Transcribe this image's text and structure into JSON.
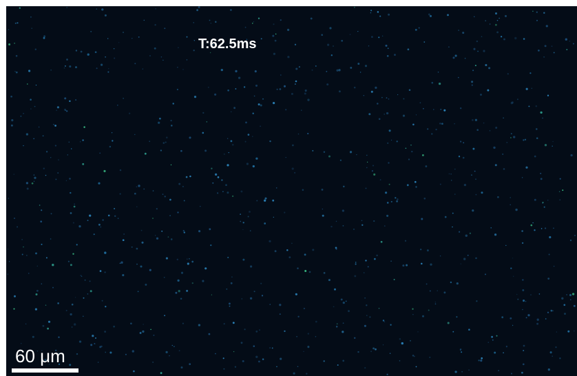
{
  "overlay": {
    "timestamp": "T:62.5ms"
  },
  "scale_bar": {
    "label": "60 μm"
  }
}
